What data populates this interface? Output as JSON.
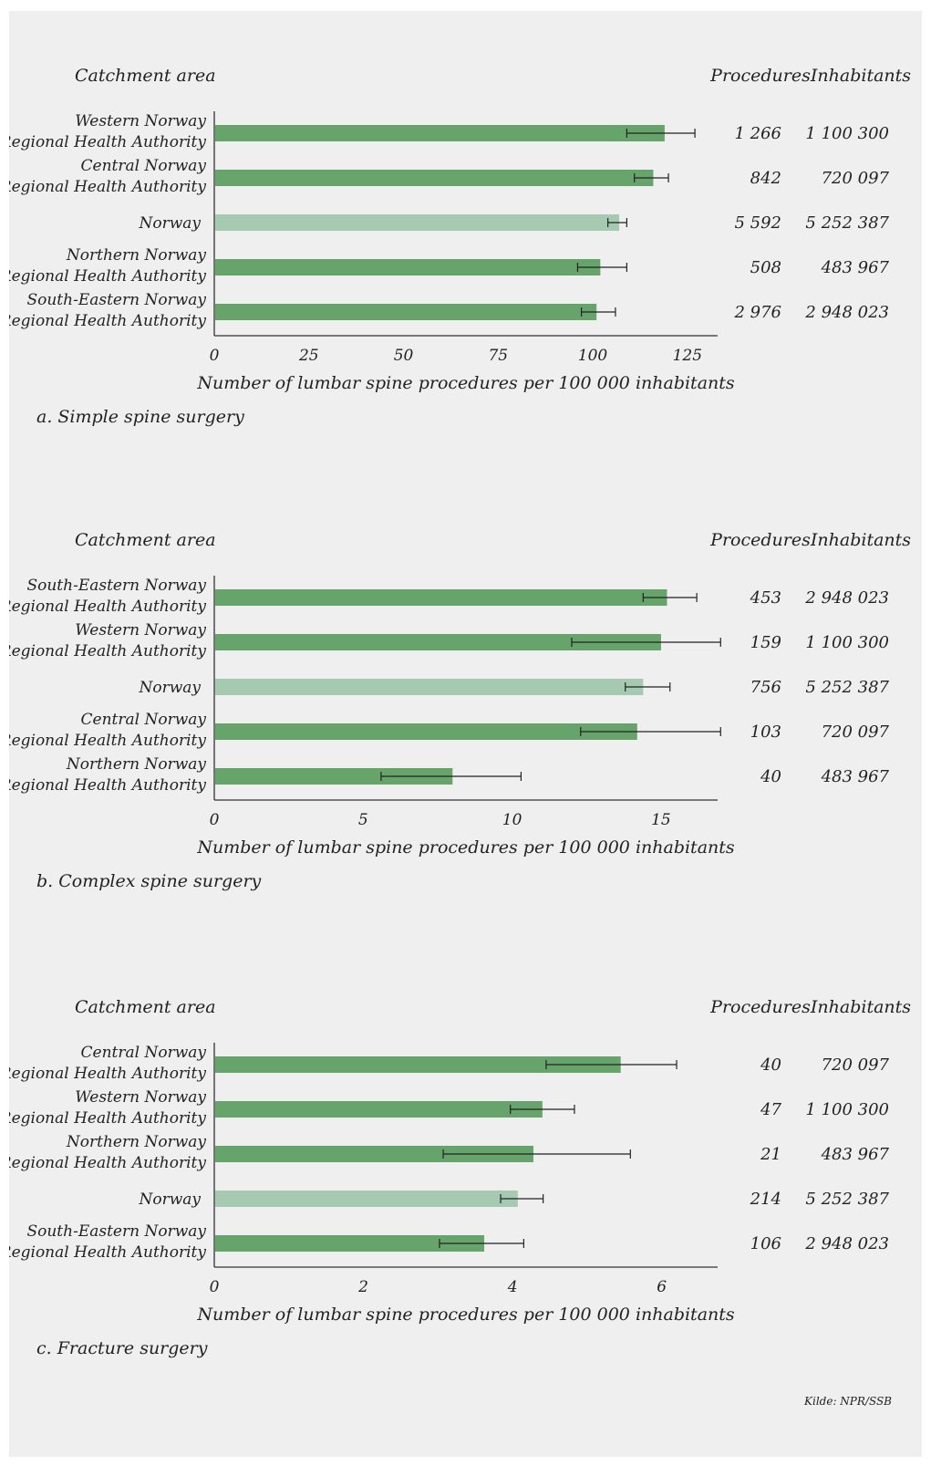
{
  "colors": {
    "background": "#efefef",
    "region_bar": "#66a46b",
    "norway_bar": "#a6c9b2",
    "error_bar": "#222222",
    "text": "#222222"
  },
  "source": "Kilde: NPR/SSB",
  "chart_data": [
    {
      "type": "bar",
      "orientation": "horizontal",
      "caption": "a. Simple spine surgery",
      "left_header": "Catchment area",
      "procedures_header": "Procedures",
      "inhabitants_header": "Inhabitants",
      "xlabel": "Number of lumbar spine procedures per 100 000 inhabitants",
      "xlim": [
        0,
        133
      ],
      "xticks": [
        0,
        25,
        50,
        75,
        100,
        125
      ],
      "rows": [
        {
          "name": [
            "Western Norway",
            "Regional Health Authority"
          ],
          "value": 119,
          "ci": [
            109,
            127
          ],
          "procedures": "1 266",
          "inhabitants": "1 100 300",
          "kind": "region"
        },
        {
          "name": [
            "Central Norway",
            "Regional Health Authority"
          ],
          "value": 116,
          "ci": [
            111,
            120
          ],
          "procedures": "842",
          "inhabitants": "720 097",
          "kind": "region"
        },
        {
          "name": [
            "Norway"
          ],
          "value": 107,
          "ci": [
            104,
            109
          ],
          "procedures": "5 592",
          "inhabitants": "5 252 387",
          "kind": "norway"
        },
        {
          "name": [
            "Northern Norway",
            "Regional Health Authority"
          ],
          "value": 102,
          "ci": [
            96,
            109
          ],
          "procedures": "508",
          "inhabitants": "483 967",
          "kind": "region"
        },
        {
          "name": [
            "South-Eastern Norway",
            "Regional Health Authority"
          ],
          "value": 101,
          "ci": [
            97,
            106
          ],
          "procedures": "2 976",
          "inhabitants": "2 948 023",
          "kind": "region"
        }
      ]
    },
    {
      "type": "bar",
      "orientation": "horizontal",
      "caption": "b. Complex spine surgery",
      "left_header": "Catchment area",
      "procedures_header": "Procedures",
      "inhabitants_header": "Inhabitants",
      "xlabel": "Number of lumbar spine procedures per 100 000 inhabitants",
      "xlim": [
        0,
        16.9
      ],
      "xticks": [
        0,
        5,
        10,
        15
      ],
      "rows": [
        {
          "name": [
            "South-Eastern Norway",
            "Regional Health Authority"
          ],
          "value": 15.2,
          "ci": [
            14.4,
            16.2
          ],
          "procedures": "453",
          "inhabitants": "2 948 023",
          "kind": "region"
        },
        {
          "name": [
            "Western Norway",
            "Regional Health Authority"
          ],
          "value": 15.0,
          "ci": [
            12.0,
            17.0
          ],
          "procedures": "159",
          "inhabitants": "1 100 300",
          "kind": "region"
        },
        {
          "name": [
            "Norway"
          ],
          "value": 14.4,
          "ci": [
            13.8,
            15.3
          ],
          "procedures": "756",
          "inhabitants": "5 252 387",
          "kind": "norway"
        },
        {
          "name": [
            "Central Norway",
            "Regional Health Authority"
          ],
          "value": 14.2,
          "ci": [
            12.3,
            17.0
          ],
          "procedures": "103",
          "inhabitants": "720 097",
          "kind": "region"
        },
        {
          "name": [
            "Northern Norway",
            "Regional Health Authority"
          ],
          "value": 8.0,
          "ci": [
            5.6,
            10.3
          ],
          "procedures": "40",
          "inhabitants": "483 967",
          "kind": "region"
        }
      ]
    },
    {
      "type": "bar",
      "orientation": "horizontal",
      "caption": "c. Fracture surgery",
      "left_header": "Catchment area",
      "procedures_header": "Procedures",
      "inhabitants_header": "Inhabitants",
      "xlabel": "Number of lumbar spine procedures per 100 000 inhabitants",
      "xlim": [
        0,
        6.75
      ],
      "xticks": [
        0,
        2,
        4,
        6
      ],
      "rows": [
        {
          "name": [
            "Central Norway",
            "Regional Health Authority"
          ],
          "value": 5.45,
          "ci": [
            4.45,
            6.2
          ],
          "procedures": "40",
          "inhabitants": "720 097",
          "kind": "region"
        },
        {
          "name": [
            "Western Norway",
            "Regional Health Authority"
          ],
          "value": 4.4,
          "ci": [
            3.97,
            4.83
          ],
          "procedures": "47",
          "inhabitants": "1 100 300",
          "kind": "region"
        },
        {
          "name": [
            "Northern Norway",
            "Regional Health Authority"
          ],
          "value": 4.28,
          "ci": [
            3.07,
            5.58
          ],
          "procedures": "21",
          "inhabitants": "483 967",
          "kind": "region"
        },
        {
          "name": [
            "Norway"
          ],
          "value": 4.07,
          "ci": [
            3.84,
            4.41
          ],
          "procedures": "214",
          "inhabitants": "5 252 387",
          "kind": "norway"
        },
        {
          "name": [
            "South-Eastern Norway",
            "Regional Health Authority"
          ],
          "value": 3.62,
          "ci": [
            3.02,
            4.15
          ],
          "procedures": "106",
          "inhabitants": "2 948 023",
          "kind": "region"
        }
      ]
    }
  ]
}
